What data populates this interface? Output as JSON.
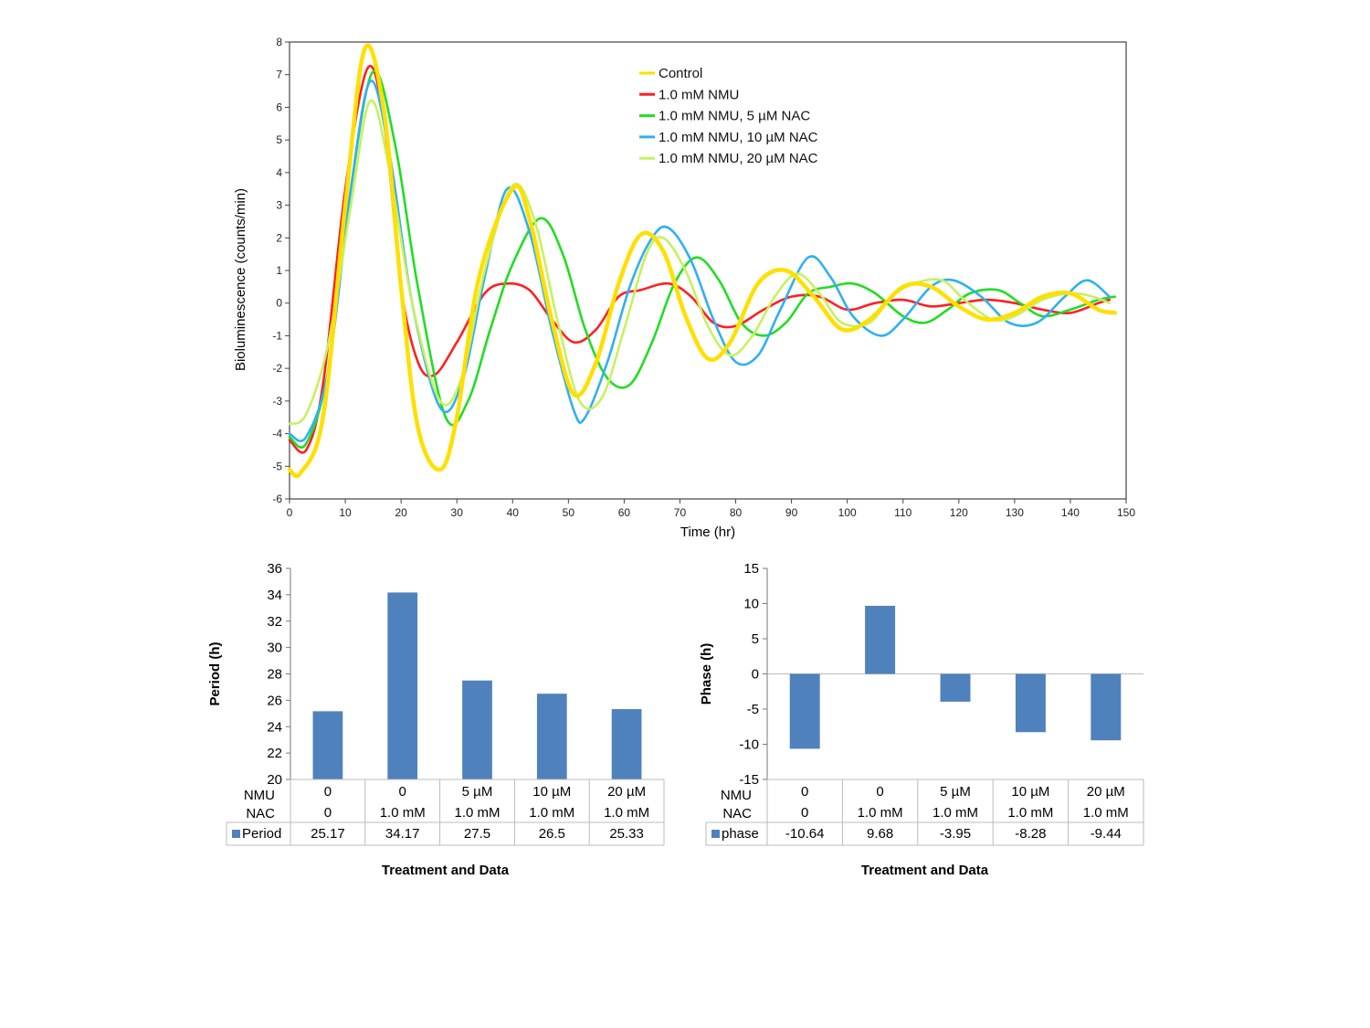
{
  "chart_data": [
    {
      "type": "line",
      "title": "",
      "xlabel": "Time (hr)",
      "ylabel": "Bioluminescence  (counts/min)",
      "xlim": [
        0,
        150
      ],
      "ylim": [
        -6,
        8
      ],
      "xticks": [
        "0",
        "10",
        "20",
        "30",
        "40",
        "50",
        "60",
        "70",
        "80",
        "90",
        "100",
        "110",
        "120",
        "130",
        "140",
        "150"
      ],
      "yticks": [
        "8",
        "7",
        "6",
        "5",
        "4",
        "3",
        "2",
        "1",
        "0",
        "-1",
        "-2",
        "-3",
        "-4",
        "-5",
        "-6"
      ],
      "legend_position": "top-right",
      "series": [
        {
          "name": "Control",
          "color": "#ffdf00",
          "x": [
            0,
            2,
            6,
            10,
            13.5,
            17,
            20,
            23,
            27,
            30,
            34,
            40,
            43,
            47,
            51,
            55,
            59,
            63,
            67,
            71,
            75,
            79,
            84,
            89,
            94,
            99,
            104,
            110,
            115,
            120,
            125,
            130,
            135,
            140,
            145,
            148
          ],
          "y": [
            -5.1,
            -5.2,
            -3.5,
            3.0,
            7.8,
            5.8,
            0.5,
            -3.8,
            -5.1,
            -3.5,
            0.8,
            3.5,
            2.6,
            -0.5,
            -2.8,
            -1.8,
            0.6,
            2.1,
            1.6,
            -0.4,
            -1.7,
            -1.2,
            0.6,
            1.0,
            0.2,
            -0.8,
            -0.5,
            0.5,
            0.5,
            -0.1,
            -0.5,
            -0.3,
            0.2,
            0.3,
            -0.2,
            -0.3
          ]
        },
        {
          "name": "1.0 mM NMU",
          "color": "#ff2020",
          "x": [
            0,
            3,
            6,
            10,
            14,
            17,
            20,
            23,
            26,
            30,
            35,
            39,
            43,
            47,
            51,
            55,
            59,
            63,
            68,
            72,
            76,
            80,
            85,
            90,
            95,
            100,
            105,
            110,
            115,
            120,
            125,
            130,
            135,
            140,
            145,
            147
          ],
          "y": [
            -4.2,
            -4.5,
            -2.5,
            3.5,
            7.2,
            5.5,
            0.5,
            -1.8,
            -2.2,
            -1.2,
            0.3,
            0.6,
            0.4,
            -0.5,
            -1.2,
            -0.8,
            0.2,
            0.4,
            0.6,
            0.2,
            -0.6,
            -0.7,
            -0.2,
            0.2,
            0.2,
            -0.2,
            0.0,
            0.1,
            -0.1,
            0.0,
            0.1,
            0.0,
            -0.2,
            -0.3,
            0.0,
            0.1
          ]
        },
        {
          "name": "1.0 mM NMU, 5 µM NAC",
          "color": "#22dd22",
          "x": [
            0,
            3,
            7,
            11,
            15,
            19,
            23,
            28,
            32,
            36,
            40,
            45,
            49,
            53,
            57,
            61,
            65,
            69,
            73,
            77,
            81,
            85,
            89,
            93,
            97,
            101,
            105,
            110,
            114,
            118,
            122,
            127,
            131,
            135,
            140,
            145,
            148
          ],
          "y": [
            -4.1,
            -4.3,
            -2.0,
            3.5,
            7.1,
            4.8,
            0.5,
            -3.5,
            -3.0,
            -0.8,
            1.2,
            2.6,
            1.5,
            -0.8,
            -2.3,
            -2.5,
            -1.2,
            0.6,
            1.4,
            0.7,
            -0.6,
            -1.0,
            -0.6,
            0.3,
            0.5,
            0.6,
            0.3,
            -0.4,
            -0.6,
            -0.2,
            0.3,
            0.4,
            0.0,
            -0.4,
            -0.2,
            0.1,
            0.2
          ]
        },
        {
          "name": "1.0 mM NMU, 10 µM NAC",
          "color": "#30b0f0",
          "x": [
            0,
            3,
            7,
            11,
            14.5,
            18,
            22,
            27,
            31,
            35,
            39,
            43,
            47,
            51,
            53,
            57,
            61,
            65,
            68,
            72,
            76,
            80,
            84,
            88,
            93,
            97,
            101,
            106,
            110,
            115,
            119,
            124,
            129,
            134,
            139,
            143,
            147
          ],
          "y": [
            -4.0,
            -4.1,
            -2.0,
            3.5,
            6.8,
            4.5,
            0.0,
            -3.2,
            -2.4,
            0.8,
            3.5,
            2.2,
            -0.8,
            -3.3,
            -3.5,
            -1.8,
            0.5,
            2.0,
            2.3,
            1.3,
            -0.5,
            -1.8,
            -1.6,
            -0.2,
            1.4,
            0.8,
            -0.4,
            -1.0,
            -0.5,
            0.5,
            0.7,
            0.2,
            -0.6,
            -0.6,
            0.2,
            0.7,
            0.2
          ]
        },
        {
          "name": "1.0 mM NMU, 20 µM NAC",
          "color": "#c8f060",
          "x": [
            0,
            3,
            7,
            11,
            14.5,
            18,
            22,
            27,
            31,
            35,
            40,
            44,
            48,
            52,
            56,
            60,
            64,
            67,
            71,
            75,
            79,
            83,
            87,
            91,
            95,
            99,
            104,
            108,
            112,
            117,
            121,
            126,
            130,
            135,
            140,
            144,
            147
          ],
          "y": [
            -3.7,
            -3.4,
            -1.2,
            3.0,
            6.2,
            4.0,
            0.0,
            -3.0,
            -2.2,
            1.0,
            3.6,
            2.5,
            -0.5,
            -3.0,
            -2.9,
            -0.8,
            1.5,
            2.0,
            1.0,
            -0.7,
            -1.6,
            -1.0,
            0.2,
            0.9,
            0.3,
            -0.6,
            -0.6,
            0.2,
            0.6,
            0.7,
            0.1,
            -0.5,
            -0.4,
            0.1,
            0.3,
            0.2,
            0.0
          ]
        }
      ]
    },
    {
      "type": "bar",
      "title": "",
      "xlabel": "Treatment and Data",
      "ylabel": "Period (h)",
      "ylim": [
        20,
        36
      ],
      "yticks": [
        "36",
        "34",
        "32",
        "30",
        "28",
        "26",
        "24",
        "22",
        "20"
      ],
      "color": "#4f81bd",
      "row_labels": {
        "nmu": "NMU",
        "nac": "NAC"
      },
      "series_name": "Period",
      "categories": [
        {
          "nmu": "0",
          "nac": "0"
        },
        {
          "nmu": "0",
          "nac": "1.0 mM"
        },
        {
          "nmu": "5 µM",
          "nac": "1.0 mM"
        },
        {
          "nmu": "10  µM",
          "nac": "1.0 mM"
        },
        {
          "nmu": "20  µM",
          "nac": "1.0 mM"
        }
      ],
      "values": [
        25.17,
        34.17,
        27.5,
        26.5,
        25.33
      ],
      "value_labels": [
        "25.17",
        "34.17",
        "27.5",
        "26.5",
        "25.33"
      ]
    },
    {
      "type": "bar",
      "title": "",
      "xlabel": "Treatment and Data",
      "ylabel": "Phase (h)",
      "ylim": [
        -15,
        15
      ],
      "yticks": [
        "15",
        "10",
        "5",
        "0",
        "-5",
        "-10",
        "-15"
      ],
      "color": "#4f81bd",
      "row_labels": {
        "nmu": "NMU",
        "nac": "NAC"
      },
      "series_name": "phase",
      "categories": [
        {
          "nmu": "0",
          "nac": "0"
        },
        {
          "nmu": "0",
          "nac": "1.0 mM"
        },
        {
          "nmu": "5 µM",
          "nac": "1.0 mM"
        },
        {
          "nmu": "10  µM",
          "nac": "1.0 mM"
        },
        {
          "nmu": "20  µM",
          "nac": "1.0 mM"
        }
      ],
      "values": [
        -10.64,
        9.68,
        -3.95,
        -8.28,
        -9.44
      ],
      "value_labels": [
        "-10.64",
        "9.68",
        "-3.95",
        "-8.28",
        "-9.44"
      ]
    }
  ]
}
